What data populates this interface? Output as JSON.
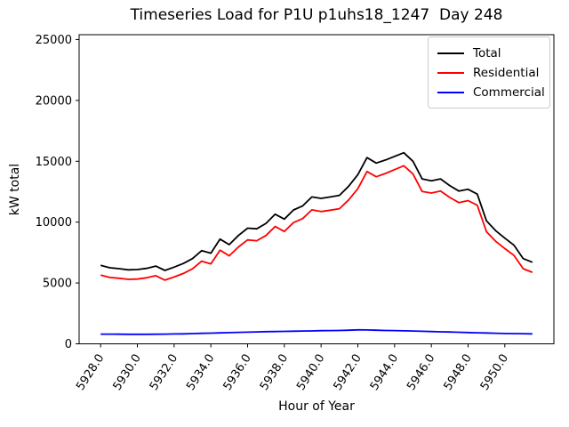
{
  "chart_data": {
    "type": "line",
    "title": "Timeseries Load for P1U p1uhs18_1247  Day 248",
    "xlabel": "Hour of Year",
    "ylabel": "kW total",
    "grid": false,
    "legend_position": "upper right",
    "xlim": [
      5926.83,
      5952.67
    ],
    "ylim": [
      0,
      25400
    ],
    "xticks": [
      5928,
      5930,
      5932,
      5934,
      5936,
      5938,
      5940,
      5942,
      5944,
      5946,
      5948,
      5950
    ],
    "xtick_labels": [
      "5928.0",
      "5930.0",
      "5932.0",
      "5934.0",
      "5936.0",
      "5938.0",
      "5940.0",
      "5942.0",
      "5944.0",
      "5946.0",
      "5948.0",
      "5950.0"
    ],
    "yticks": [
      0,
      5000,
      10000,
      15000,
      20000,
      25000
    ],
    "ytick_labels": [
      "0",
      "5000",
      "10000",
      "15000",
      "20000",
      "25000"
    ],
    "xtick_rotation_deg": -57,
    "x": [
      5928.0,
      5928.5,
      5929.0,
      5929.5,
      5930.0,
      5930.5,
      5931.0,
      5931.5,
      5932.0,
      5932.5,
      5933.0,
      5933.5,
      5934.0,
      5934.5,
      5935.0,
      5935.5,
      5936.0,
      5936.5,
      5937.0,
      5937.5,
      5938.0,
      5938.5,
      5939.0,
      5939.5,
      5940.0,
      5940.5,
      5941.0,
      5941.5,
      5942.0,
      5942.5,
      5943.0,
      5943.5,
      5944.0,
      5944.5,
      5945.0,
      5945.5,
      5946.0,
      5946.5,
      5947.0,
      5947.5,
      5948.0,
      5948.5,
      5949.0,
      5949.5,
      5950.0,
      5950.5,
      5951.0,
      5951.5
    ],
    "series": [
      {
        "name": "Total",
        "color": "#000000",
        "values": [
          6450,
          6250,
          6180,
          6080,
          6100,
          6200,
          6390,
          6030,
          6300,
          6600,
          7000,
          7650,
          7450,
          8600,
          8150,
          8900,
          9500,
          9450,
          9900,
          10650,
          10250,
          11000,
          11340,
          12070,
          11950,
          12070,
          12200,
          12950,
          13900,
          15300,
          14850,
          15100,
          15400,
          15700,
          15000,
          13550,
          13400,
          13550,
          13000,
          12550,
          12700,
          12300,
          10100,
          9300,
          8680,
          8100,
          7000,
          6700
        ]
      },
      {
        "name": "Residential",
        "color": "#ff0000",
        "values": [
          5650,
          5450,
          5390,
          5300,
          5320,
          5420,
          5600,
          5230,
          5490,
          5780,
          6160,
          6790,
          6570,
          7700,
          7230,
          7960,
          8540,
          8470,
          8900,
          9640,
          9230,
          9960,
          10290,
          11010,
          10870,
          10980,
          11100,
          11830,
          12750,
          14160,
          13730,
          14000,
          14310,
          14630,
          13950,
          12520,
          12390,
          12560,
          12030,
          11600,
          11770,
          11390,
          9210,
          8430,
          7830,
          7260,
          6170,
          5880
        ]
      },
      {
        "name": "Commercial",
        "color": "#0000ff",
        "values": [
          800,
          800,
          790,
          780,
          780,
          780,
          790,
          800,
          810,
          820,
          840,
          860,
          880,
          900,
          920,
          940,
          960,
          980,
          1000,
          1010,
          1020,
          1040,
          1050,
          1060,
          1080,
          1090,
          1100,
          1120,
          1150,
          1140,
          1120,
          1100,
          1090,
          1070,
          1050,
          1030,
          1010,
          990,
          970,
          950,
          930,
          910,
          890,
          870,
          850,
          840,
          830,
          820
        ]
      }
    ]
  }
}
